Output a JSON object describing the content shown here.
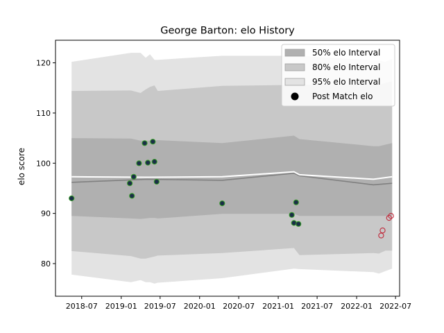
{
  "chart_data": {
    "type": "line",
    "title": "George Barton: elo History",
    "xlabel": "",
    "ylabel": "elo score",
    "xlim": [
      "2018-03-01",
      "2022-07-20"
    ],
    "ylim": [
      73.5,
      124.5
    ],
    "x_ticks": [
      "2018-07",
      "2019-01",
      "2019-07",
      "2020-01",
      "2020-07",
      "2021-01",
      "2021-07",
      "2022-01",
      "2022-07"
    ],
    "y_ticks": [
      80,
      90,
      100,
      110,
      120
    ],
    "grid": false,
    "legend_position": "top-right",
    "legend": [
      {
        "label": "50% elo Interval",
        "kind": "patch",
        "color": "#b0b0b0"
      },
      {
        "label": "80% elo Interval",
        "kind": "patch",
        "color": "#c8c8c8"
      },
      {
        "label": "95% elo Interval",
        "kind": "patch",
        "color": "#e3e3e3"
      },
      {
        "label": "Post Match elo",
        "kind": "marker",
        "color": "#000000"
      }
    ],
    "colors": {
      "band_50": "#b0b0b0",
      "band_80": "#c8c8c8",
      "band_95": "#e3e3e3",
      "mean_line": "#808080",
      "median_line": "#ffffff",
      "point_fill": "#1a2f47",
      "point_edge": "#3aa02a",
      "future_edge": "#c0283a"
    },
    "bands": [
      {
        "name": "95% elo Interval",
        "x": [
          "2018-05-15",
          "2019-02-15",
          "2019-04-01",
          "2019-04-25",
          "2019-05-15",
          "2019-06-05",
          "2019-06-20",
          "2020-04-15",
          "2021-03-15",
          "2021-04-10",
          "2022-03-20",
          "2022-04-15",
          "2022-05-15",
          "2022-06-15"
        ],
        "upper": [
          120.2,
          122.0,
          122.0,
          121.0,
          121.7,
          120.6,
          120.6,
          121.4,
          121.4,
          121.4,
          120.5,
          120.5,
          120.2,
          120.8
        ],
        "lower": [
          77.8,
          76.3,
          76.7,
          76.3,
          76.3,
          76.0,
          76.2,
          77.1,
          79.0,
          78.9,
          78.3,
          78.0,
          78.5,
          79.0
        ]
      },
      {
        "name": "80% elo Interval",
        "x": [
          "2018-05-15",
          "2019-02-15",
          "2019-04-01",
          "2019-04-25",
          "2019-05-15",
          "2019-06-05",
          "2019-06-20",
          "2020-04-15",
          "2021-03-15",
          "2021-04-10",
          "2022-03-20",
          "2022-04-15",
          "2022-05-15",
          "2022-06-15"
        ],
        "upper": [
          114.4,
          114.5,
          114.0,
          114.7,
          115.2,
          115.5,
          114.4,
          115.4,
          115.6,
          115.6,
          115.6,
          115.6,
          116.0,
          116.3
        ],
        "lower": [
          82.5,
          81.5,
          81.0,
          81.0,
          81.2,
          81.4,
          81.6,
          82.1,
          83.1,
          81.7,
          82.1,
          82.0,
          82.6,
          82.6
        ]
      },
      {
        "name": "50% elo Interval",
        "x": [
          "2018-05-15",
          "2019-02-15",
          "2019-04-01",
          "2019-04-25",
          "2019-05-15",
          "2019-06-05",
          "2019-06-20",
          "2020-04-15",
          "2021-03-15",
          "2021-04-10",
          "2022-03-20",
          "2022-04-15",
          "2022-05-15",
          "2022-06-15"
        ],
        "upper": [
          105.0,
          104.9,
          104.5,
          104.5,
          104.5,
          104.5,
          104.6,
          104.0,
          105.5,
          104.8,
          103.4,
          103.4,
          103.7,
          104.0
        ],
        "lower": [
          89.5,
          89.0,
          88.9,
          89.0,
          89.1,
          89.1,
          89.0,
          89.9,
          89.9,
          89.5,
          89.5,
          89.5,
          89.5,
          89.5
        ]
      }
    ],
    "lines": [
      {
        "name": "mean",
        "x": [
          "2018-05-15",
          "2019-05-01",
          "2020-04-15",
          "2021-03-15",
          "2021-04-10",
          "2022-03-20",
          "2022-06-15"
        ],
        "y": [
          96.2,
          96.8,
          96.6,
          98.0,
          97.5,
          95.7,
          96.0
        ]
      },
      {
        "name": "median",
        "x": [
          "2018-05-15",
          "2019-05-01",
          "2020-04-15",
          "2021-03-15",
          "2021-04-10",
          "2022-03-20",
          "2022-06-15"
        ],
        "y": [
          97.3,
          97.2,
          97.3,
          98.3,
          97.7,
          96.8,
          97.3
        ]
      }
    ],
    "series": [
      {
        "name": "Post Match elo",
        "x": [
          "2018-05-15",
          "2019-02-10",
          "2019-02-20",
          "2019-02-28",
          "2019-03-25",
          "2019-04-20",
          "2019-05-05",
          "2019-05-28",
          "2019-06-05",
          "2019-06-15",
          "2020-04-15",
          "2021-03-05",
          "2021-03-15",
          "2021-03-25",
          "2021-04-05"
        ],
        "y": [
          93.0,
          96.0,
          93.5,
          97.3,
          100.0,
          104.0,
          100.1,
          104.3,
          100.3,
          96.3,
          92.0,
          89.7,
          88.1,
          92.2,
          87.9
        ]
      },
      {
        "name": "future",
        "x": [
          "2022-04-25",
          "2022-05-02",
          "2022-06-01",
          "2022-06-10"
        ],
        "y": [
          85.6,
          86.6,
          89.1,
          89.5
        ]
      }
    ]
  }
}
